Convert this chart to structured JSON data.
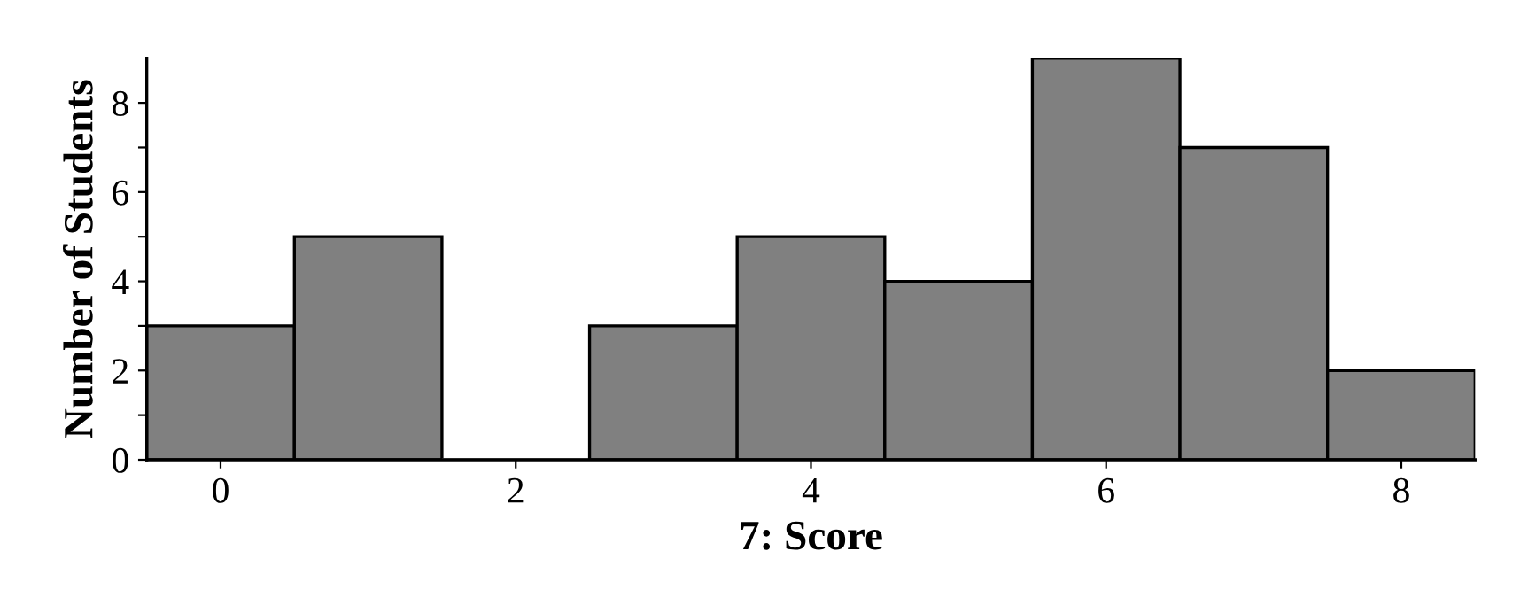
{
  "chart_data": {
    "type": "histogram",
    "xlabel": "7: Score",
    "ylabel": "Number of Students",
    "bins": [
      -0.5,
      0.5,
      1.5,
      2.5,
      3.5,
      4.5,
      5.5,
      6.5,
      7.5,
      8.5
    ],
    "values": [
      3,
      5,
      0,
      3,
      5,
      4,
      9,
      7,
      2
    ],
    "color": "#808080",
    "xlim": [
      -0.5,
      8.5
    ],
    "xticks": [
      0,
      2,
      4,
      6,
      8
    ],
    "ylim": [
      0,
      9
    ],
    "yticks": [
      0,
      {
        "value": 1,
        "label": null
      },
      2,
      {
        "value": 3,
        "label": null
      },
      4,
      {
        "value": 5,
        "label": null
      },
      6,
      {
        "value": 7,
        "label": null
      },
      8
    ],
    "grid": false
  }
}
